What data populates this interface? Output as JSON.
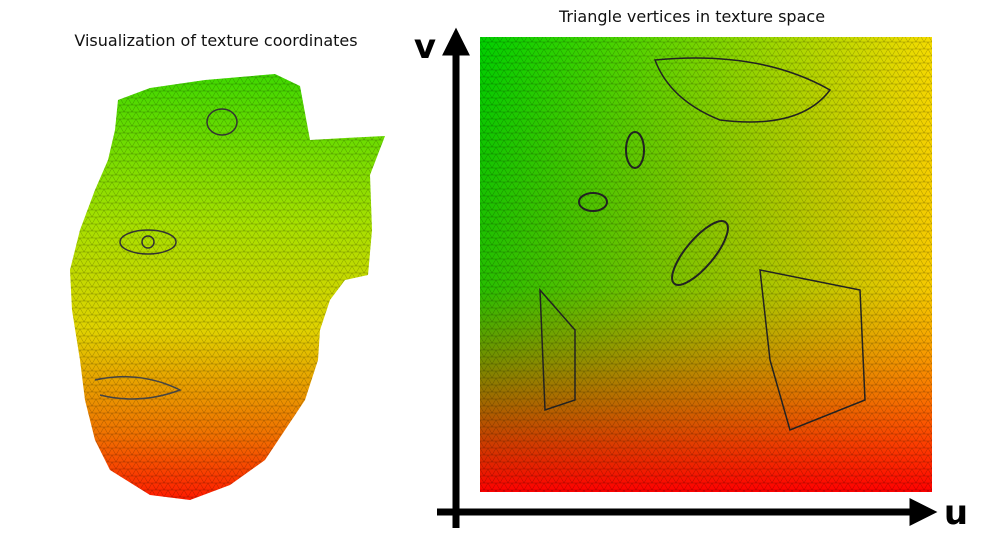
{
  "left_title": "Visualization of texture coordinates",
  "right_title": "Triangle vertices in texture space",
  "axes": {
    "v": "v",
    "u": "u"
  }
}
